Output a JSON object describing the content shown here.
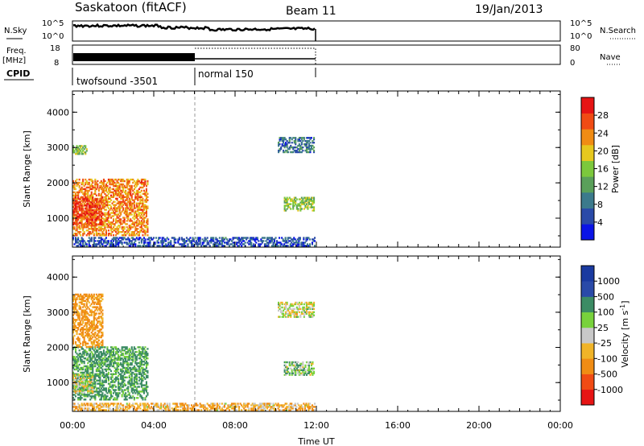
{
  "header": {
    "title": "Saskatoon (fitACF)",
    "beam": "Beam 11",
    "date": "19/Jan/2013"
  },
  "strip_labels": {
    "nsky": "N.Sky",
    "nsearch": "N.Search",
    "freq": "Freq.",
    "freq_unit": "[MHz]",
    "nave": "Nave",
    "cpid": "CPID",
    "ten_pow_5": "10^5",
    "ten_pow_0": "10^0",
    "freq_ticks": [
      "18",
      "8"
    ],
    "nave_ticks": [
      "80",
      "0"
    ]
  },
  "cpid_segments": [
    {
      "start_h": 0.0,
      "end_h": 6.0,
      "label": "twofsound -3501"
    },
    {
      "start_h": 6.0,
      "end_h": 12.0,
      "label": "normal 150"
    }
  ],
  "colors": {
    "axis": "#000000",
    "power_scale": [
      "#0a14e6",
      "#2a4aa8",
      "#3c7a8c",
      "#5aa05a",
      "#7cc83c",
      "#e6c81e",
      "#f08c14",
      "#f04b14",
      "#e61414"
    ],
    "velocity_scale": [
      "#e61414",
      "#f04b14",
      "#f08c14",
      "#f0b428",
      "#c8c8c8",
      "#78d23c",
      "#3c8c64",
      "#2a4aa8",
      "#1a3aa0"
    ]
  },
  "chart_data": [
    {
      "type": "heatmap",
      "name": "power",
      "xlabel": "",
      "ylabel": "Slant Range [km]",
      "xlim": [
        "00:00",
        "24:00"
      ],
      "ylim": [
        180,
        4600
      ],
      "yticks": [
        "1000",
        "2000",
        "3000",
        "4000"
      ],
      "colorbar_label": "Power [dB]",
      "colorbar_ticks": [
        "4",
        "8",
        "12",
        "16",
        "20",
        "24",
        "28"
      ],
      "regions": [
        {
          "t": [
            0.0,
            3.7
          ],
          "r": [
            500,
            2100
          ],
          "value": 26
        },
        {
          "t": [
            0.0,
            1.5
          ],
          "r": [
            800,
            1600
          ],
          "value": 30
        },
        {
          "t": [
            0.0,
            0.7
          ],
          "r": [
            2800,
            3050
          ],
          "value": 18
        },
        {
          "t": [
            0.0,
            11.9
          ],
          "r": [
            200,
            450
          ],
          "value": 8
        },
        {
          "t": [
            10.1,
            11.9
          ],
          "r": [
            2850,
            3300
          ],
          "value": 10
        },
        {
          "t": [
            10.4,
            11.9
          ],
          "r": [
            1200,
            1600
          ],
          "value": 18
        }
      ]
    },
    {
      "type": "heatmap",
      "name": "velocity",
      "xlabel": "Time UT",
      "ylabel": "Slant Range [km]",
      "xlim": [
        "00:00",
        "24:00"
      ],
      "xticks": [
        "00:00",
        "04:00",
        "08:00",
        "12:00",
        "16:00",
        "20:00",
        "00:00"
      ],
      "ylim": [
        180,
        4600
      ],
      "yticks": [
        "1000",
        "2000",
        "3000",
        "4000"
      ],
      "colorbar_label": "Velocity [m s^-1]",
      "colorbar_ticks": [
        "1000",
        "500",
        "100",
        "25",
        "-25",
        "-100",
        "-500",
        "-1000"
      ],
      "regions": [
        {
          "t": [
            0.0,
            3.7
          ],
          "r": [
            500,
            2000
          ],
          "value": 150
        },
        {
          "t": [
            0.0,
            1.0
          ],
          "r": [
            700,
            1200
          ],
          "value": 0
        },
        {
          "t": [
            0.0,
            1.5
          ],
          "r": [
            2000,
            3500
          ],
          "value": -150
        },
        {
          "t": [
            0.0,
            11.9
          ],
          "r": [
            200,
            400
          ],
          "value": -80
        },
        {
          "t": [
            10.1,
            11.9
          ],
          "r": [
            2850,
            3300
          ],
          "value": 0
        },
        {
          "t": [
            10.4,
            11.9
          ],
          "r": [
            1200,
            1600
          ],
          "value": 60
        }
      ]
    }
  ]
}
